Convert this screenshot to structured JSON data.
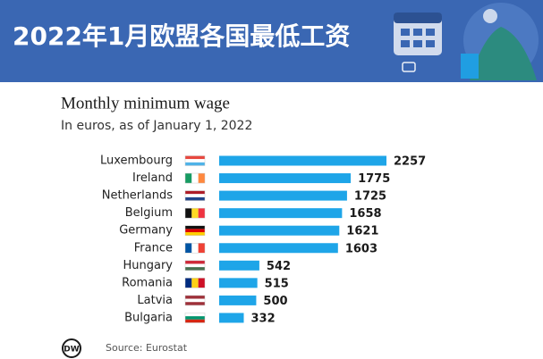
{
  "banner": {
    "title": "2022年1月欧盟各国最低工资"
  },
  "chart_data": {
    "type": "bar",
    "orientation": "horizontal",
    "title": "Monthly minimum wage",
    "subtitle": "In euros, as of January 1, 2022",
    "categories": [
      "Luxembourg",
      "Ireland",
      "Netherlands",
      "Belgium",
      "Germany",
      "France",
      "Hungary",
      "Romania",
      "Latvia",
      "Bulgaria"
    ],
    "values": [
      2257,
      1775,
      1725,
      1658,
      1621,
      1603,
      542,
      515,
      500,
      332
    ],
    "color": "#1ea5e8",
    "source": "Source: Eurostat",
    "logo": "DW"
  }
}
